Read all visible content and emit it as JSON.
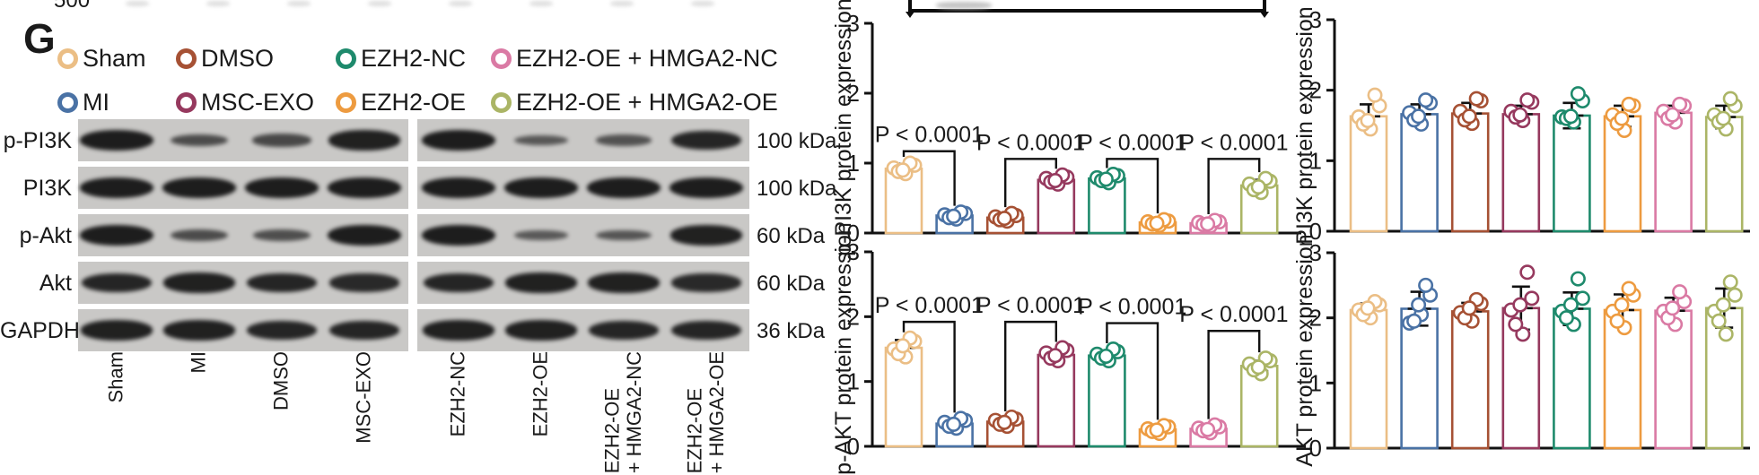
{
  "panel_label": "G",
  "artifacts": {
    "top_left_partial_text": "500"
  },
  "groups": [
    {
      "name": "Sham",
      "color": "#EBBE85"
    },
    {
      "name": "MI",
      "color": "#4A72A5"
    },
    {
      "name": "DMSO",
      "color": "#A65134"
    },
    {
      "name": "MSC-EXO",
      "color": "#96395E"
    },
    {
      "name": "EZH2-NC",
      "color": "#1E8A6C"
    },
    {
      "name": "EZH2-OE",
      "color": "#ED9B40"
    },
    {
      "name": "EZH2-OE + HMGA2-NC",
      "color": "#DA7AA4"
    },
    {
      "name": "EZH2-OE + HMGA2-OE",
      "color": "#ABB566"
    }
  ],
  "blot": {
    "rows": [
      {
        "protein": "p-PI3K",
        "kda": "100 kDa",
        "intensities": [
          1.0,
          0.45,
          0.5,
          0.95,
          1.0,
          0.32,
          0.38,
          0.9
        ]
      },
      {
        "protein": "PI3K",
        "kda": "100 kDa",
        "intensities": [
          1.0,
          1.0,
          1.0,
          1.0,
          1.0,
          1.0,
          1.0,
          1.0
        ]
      },
      {
        "protein": "p-Akt",
        "kda": "60 kDa",
        "intensities": [
          1.0,
          0.45,
          0.42,
          1.0,
          1.0,
          0.3,
          0.35,
          0.95
        ]
      },
      {
        "protein": "Akt",
        "kda": "60 kDa",
        "intensities": [
          0.9,
          0.95,
          0.9,
          0.85,
          0.9,
          0.95,
          0.95,
          0.85
        ]
      },
      {
        "protein": "GAPDH",
        "kda": "36 kDa",
        "intensities": [
          0.95,
          0.95,
          0.9,
          0.9,
          0.95,
          0.95,
          0.9,
          0.9
        ]
      }
    ],
    "lane_labels": [
      "Sham",
      "MI",
      "DMSO",
      "MSC-EXO",
      "EZH2-NC",
      "EZH2-OE",
      "EZH2-OE\n+ HMGA2-NC",
      "EZH2-OE\n+ HMGA2-OE"
    ]
  },
  "chart_data": [
    {
      "id": "p-pi3k",
      "type": "bar",
      "ylabel": "p-PI3K protein expression",
      "ylim": [
        0,
        3
      ],
      "yticks": [
        0,
        1,
        2,
        3
      ],
      "grid": false,
      "legend_position": "none",
      "categories": [
        "Sham",
        "MI",
        "DMSO",
        "MSC-EXO",
        "EZH2-NC",
        "EZH2-OE",
        "EZH2-OE + HMGA2-NC",
        "EZH2-OE + HMGA2-OE"
      ],
      "values": [
        0.92,
        0.25,
        0.22,
        0.76,
        0.78,
        0.15,
        0.14,
        0.68
      ],
      "errors": [
        0.07,
        0.04,
        0.04,
        0.05,
        0.05,
        0.03,
        0.03,
        0.08
      ],
      "points": [
        [
          0.93,
          0.85,
          0.97,
          0.88,
          1.0,
          0.9
        ],
        [
          0.26,
          0.2,
          0.28,
          0.22,
          0.3,
          0.24
        ],
        [
          0.23,
          0.17,
          0.25,
          0.19,
          0.28,
          0.21
        ],
        [
          0.78,
          0.7,
          0.8,
          0.73,
          0.83,
          0.75
        ],
        [
          0.79,
          0.72,
          0.82,
          0.75,
          0.84,
          0.77
        ],
        [
          0.16,
          0.11,
          0.17,
          0.13,
          0.19,
          0.14
        ],
        [
          0.15,
          0.1,
          0.16,
          0.12,
          0.18,
          0.13
        ],
        [
          0.7,
          0.58,
          0.74,
          0.62,
          0.78,
          0.66
        ]
      ],
      "annotations": [
        {
          "text": "P < 0.0001",
          "pair": [
            0,
            1
          ],
          "y": 1.17
        },
        {
          "text": "P < 0.0001",
          "pair": [
            2,
            3
          ],
          "y": 1.06
        },
        {
          "text": "P < 0.0001",
          "pair": [
            4,
            5
          ],
          "y": 1.06
        },
        {
          "text": "P < 0.0001",
          "pair": [
            6,
            7
          ],
          "y": 1.06
        }
      ]
    },
    {
      "id": "pi3k",
      "type": "bar",
      "ylabel": "PI3K protein expression",
      "ylim": [
        0,
        3
      ],
      "yticks": [
        0,
        1,
        2,
        3
      ],
      "grid": false,
      "legend_position": "none",
      "categories": [
        "Sham",
        "MI",
        "DMSO",
        "MSC-EXO",
        "EZH2-NC",
        "EZH2-OE",
        "EZH2-OE + HMGA2-NC",
        "EZH2-OE + HMGA2-OE"
      ],
      "values": [
        1.63,
        1.66,
        1.67,
        1.66,
        1.64,
        1.63,
        1.68,
        1.62
      ],
      "errors": [
        0.17,
        0.14,
        0.15,
        0.12,
        0.18,
        0.15,
        0.1,
        0.16
      ],
      "points": [
        [
          1.62,
          1.45,
          1.78,
          1.52,
          1.93,
          1.57
        ],
        [
          1.68,
          1.52,
          1.82,
          1.58,
          1.86,
          1.63
        ],
        [
          1.7,
          1.53,
          1.85,
          1.58,
          1.88,
          1.63
        ],
        [
          1.7,
          1.57,
          1.83,
          1.62,
          1.86,
          1.65
        ],
        [
          1.62,
          1.55,
          1.85,
          1.6,
          1.95,
          1.63
        ],
        [
          1.65,
          1.43,
          1.78,
          1.53,
          1.8,
          1.6
        ],
        [
          1.7,
          1.55,
          1.78,
          1.6,
          1.8,
          1.65
        ],
        [
          1.65,
          1.45,
          1.78,
          1.55,
          1.88,
          1.6
        ]
      ],
      "annotations": []
    },
    {
      "id": "p-akt",
      "type": "bar",
      "ylabel": "p-AKT protein expression",
      "ylim": [
        0,
        3
      ],
      "yticks": [
        0,
        1,
        2,
        3
      ],
      "grid": false,
      "legend_position": "none",
      "categories": [
        "Sham",
        "MI",
        "DMSO",
        "MSC-EXO",
        "EZH2-NC",
        "EZH2-OE",
        "EZH2-OE + HMGA2-NC",
        "EZH2-OE + HMGA2-OE"
      ],
      "values": [
        1.52,
        0.35,
        0.38,
        1.41,
        1.4,
        0.26,
        0.27,
        1.24
      ],
      "errors": [
        0.12,
        0.06,
        0.06,
        0.08,
        0.07,
        0.04,
        0.04,
        0.08
      ],
      "points": [
        [
          1.5,
          1.38,
          1.62,
          1.43,
          1.67,
          1.55
        ],
        [
          0.37,
          0.28,
          0.4,
          0.31,
          0.43,
          0.34
        ],
        [
          0.4,
          0.31,
          0.42,
          0.34,
          0.45,
          0.37
        ],
        [
          1.44,
          1.32,
          1.48,
          1.36,
          1.52,
          1.4
        ],
        [
          1.42,
          1.32,
          1.46,
          1.36,
          1.5,
          1.39
        ],
        [
          0.27,
          0.2,
          0.3,
          0.23,
          0.32,
          0.25
        ],
        [
          0.28,
          0.21,
          0.3,
          0.24,
          0.33,
          0.26
        ],
        [
          1.27,
          1.12,
          1.32,
          1.18,
          1.36,
          1.22
        ]
      ],
      "annotations": [
        {
          "text": "P < 0.0001",
          "pair": [
            0,
            1
          ],
          "y": 1.92
        },
        {
          "text": "P < 0.0001",
          "pair": [
            2,
            3
          ],
          "y": 1.92
        },
        {
          "text": "P < 0.0001",
          "pair": [
            4,
            5
          ],
          "y": 1.9
        },
        {
          "text": "P < 0.0001",
          "pair": [
            6,
            7
          ],
          "y": 1.78
        }
      ]
    },
    {
      "id": "akt",
      "type": "bar",
      "ylabel": "AKT protein expression",
      "ylim": [
        0,
        3
      ],
      "yticks": [
        0,
        1,
        2,
        3
      ],
      "grid": false,
      "legend_position": "none",
      "categories": [
        "Sham",
        "MI",
        "DMSO",
        "MSC-EXO",
        "EZH2-NC",
        "EZH2-OE",
        "EZH2-OE + HMGA2-NC",
        "EZH2-OE + HMGA2-OE"
      ],
      "values": [
        2.12,
        2.14,
        2.1,
        2.15,
        2.14,
        2.12,
        2.11,
        2.15
      ],
      "errors": [
        0.1,
        0.26,
        0.13,
        0.33,
        0.25,
        0.24,
        0.2,
        0.3
      ],
      "points": [
        [
          2.12,
          2.0,
          2.2,
          2.05,
          2.25,
          2.15
        ],
        [
          1.92,
          2.05,
          2.35,
          1.95,
          2.5,
          2.2
        ],
        [
          2.08,
          1.95,
          2.22,
          2.0,
          2.28,
          2.15
        ],
        [
          2.12,
          1.75,
          2.3,
          1.9,
          2.7,
          2.2
        ],
        [
          2.1,
          1.9,
          2.3,
          2.0,
          2.6,
          2.2
        ],
        [
          2.1,
          1.85,
          2.35,
          1.95,
          2.45,
          2.2
        ],
        [
          2.1,
          1.9,
          2.25,
          2.0,
          2.4,
          2.15
        ],
        [
          2.1,
          1.75,
          2.35,
          1.95,
          2.55,
          2.2
        ]
      ],
      "annotations": []
    }
  ]
}
